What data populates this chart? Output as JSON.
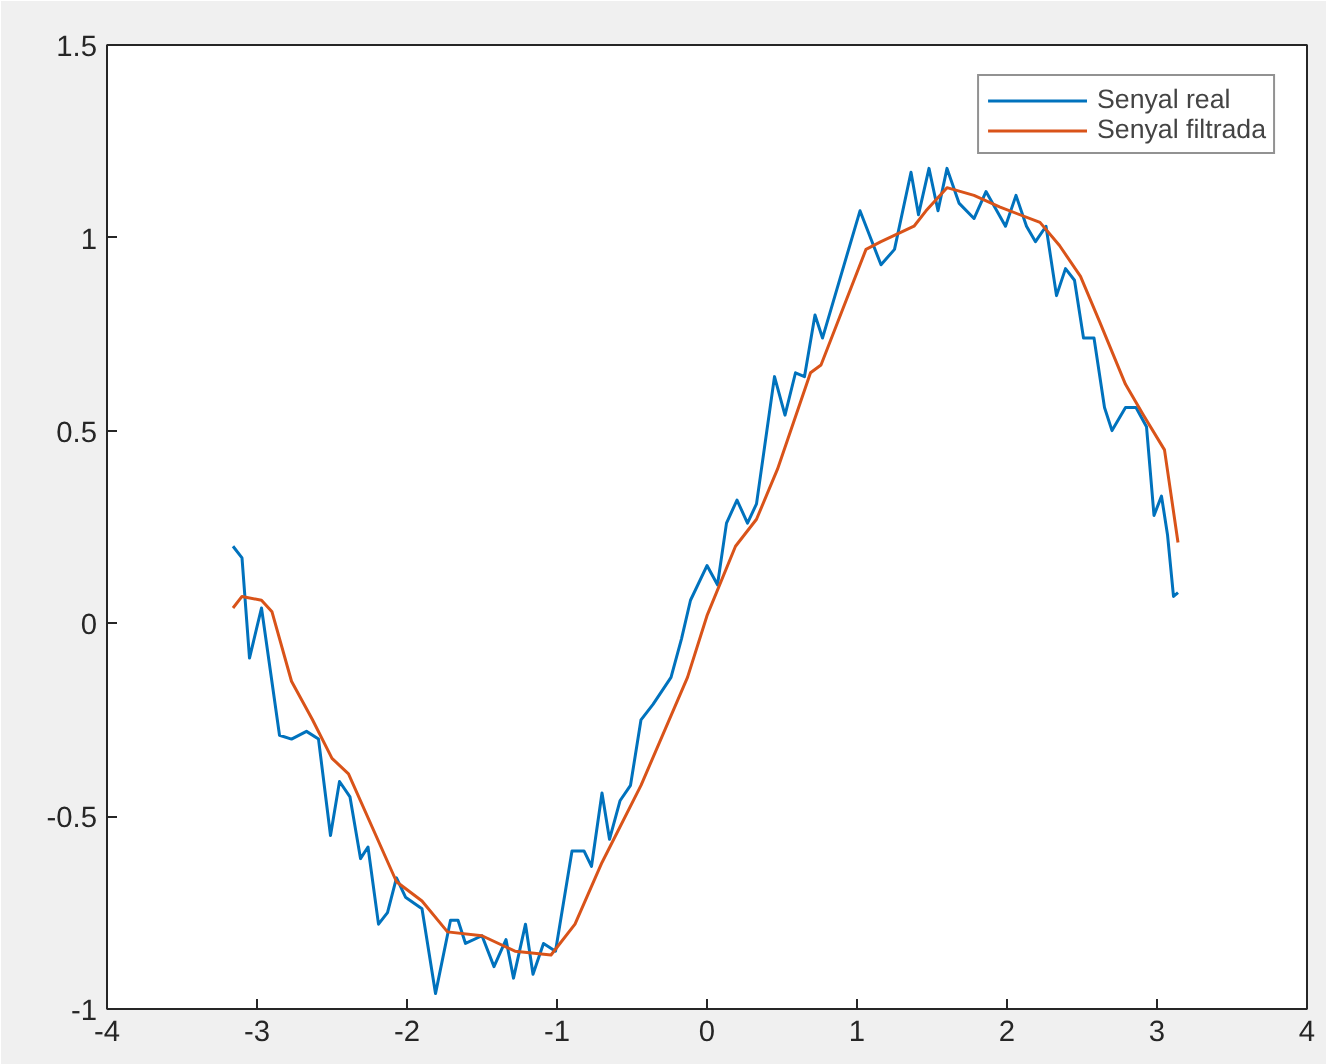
{
  "chart_data": {
    "type": "line",
    "xlim": [
      -4,
      4
    ],
    "ylim": [
      -1,
      1.5
    ],
    "xticks": [
      -4,
      -3,
      -2,
      -1,
      0,
      1,
      2,
      3,
      4
    ],
    "yticks": [
      -1,
      -0.5,
      0,
      0.5,
      1,
      1.5
    ],
    "grid": false,
    "legend": "top right",
    "line_style": "solid",
    "marker": "none",
    "series": [
      {
        "name": "Senyal real",
        "color": "#0072bd",
        "x": [
          -3.16,
          -3.1,
          -3.05,
          -2.97,
          -2.85,
          -2.77,
          -2.67,
          -2.59,
          -2.51,
          -2.45,
          -2.38,
          -2.31,
          -2.26,
          -2.19,
          -2.13,
          -2.07,
          -2.01,
          -1.9,
          -1.81,
          -1.71,
          -1.66,
          -1.61,
          -1.5,
          -1.42,
          -1.34,
          -1.29,
          -1.21,
          -1.16,
          -1.09,
          -1.01,
          -0.9,
          -0.82,
          -0.77,
          -0.7,
          -0.65,
          -0.58,
          -0.51,
          -0.44,
          -0.36,
          -0.24,
          -0.17,
          -0.11,
          0.0,
          0.07,
          0.13,
          0.2,
          0.27,
          0.33,
          0.45,
          0.52,
          0.59,
          0.65,
          0.72,
          0.77,
          1.02,
          1.16,
          1.25,
          1.36,
          1.41,
          1.48,
          1.54,
          1.6,
          1.68,
          1.78,
          1.86,
          1.99,
          2.06,
          2.13,
          2.19,
          2.26,
          2.33,
          2.39,
          2.45,
          2.51,
          2.58,
          2.65,
          2.7,
          2.79,
          2.86,
          2.93,
          2.98,
          3.03,
          3.07,
          3.11,
          3.14
        ],
        "values": [
          0.2,
          0.17,
          -0.09,
          0.04,
          -0.29,
          -0.3,
          -0.28,
          -0.3,
          -0.55,
          -0.41,
          -0.45,
          -0.61,
          -0.58,
          -0.78,
          -0.75,
          -0.66,
          -0.71,
          -0.74,
          -0.96,
          -0.77,
          -0.77,
          -0.83,
          -0.81,
          -0.89,
          -0.82,
          -0.92,
          -0.78,
          -0.91,
          -0.83,
          -0.85,
          -0.59,
          -0.59,
          -0.63,
          -0.44,
          -0.56,
          -0.46,
          -0.42,
          -0.25,
          -0.21,
          -0.14,
          -0.04,
          0.06,
          0.15,
          0.1,
          0.26,
          0.32,
          0.26,
          0.31,
          0.64,
          0.54,
          0.65,
          0.64,
          0.8,
          0.74,
          1.07,
          0.93,
          0.97,
          1.17,
          1.06,
          1.18,
          1.07,
          1.18,
          1.09,
          1.05,
          1.12,
          1.03,
          1.11,
          1.03,
          0.99,
          1.03,
          0.85,
          0.92,
          0.89,
          0.74,
          0.74,
          0.56,
          0.5,
          0.56,
          0.56,
          0.51,
          0.28,
          0.33,
          0.23,
          0.07,
          0.08
        ]
      },
      {
        "name": "Senyal filtrada",
        "color": "#d95319",
        "x": [
          -3.16,
          -3.1,
          -2.97,
          -2.9,
          -2.77,
          -2.63,
          -2.5,
          -2.39,
          -2.07,
          -1.9,
          -1.73,
          -1.5,
          -1.28,
          -1.04,
          -0.88,
          -0.7,
          -0.44,
          -0.13,
          0.0,
          0.19,
          0.33,
          0.47,
          0.69,
          0.76,
          1.06,
          1.16,
          1.38,
          1.46,
          1.6,
          1.78,
          1.95,
          2.22,
          2.35,
          2.49,
          2.62,
          2.79,
          2.91,
          3.05,
          3.14
        ],
        "values": [
          0.04,
          0.07,
          0.06,
          0.03,
          -0.15,
          -0.25,
          -0.35,
          -0.39,
          -0.67,
          -0.72,
          -0.8,
          -0.81,
          -0.85,
          -0.86,
          -0.78,
          -0.62,
          -0.42,
          -0.14,
          0.02,
          0.2,
          0.27,
          0.4,
          0.65,
          0.67,
          0.97,
          0.99,
          1.03,
          1.07,
          1.13,
          1.11,
          1.08,
          1.04,
          0.98,
          0.9,
          0.78,
          0.62,
          0.54,
          0.45,
          0.21
        ]
      }
    ]
  }
}
